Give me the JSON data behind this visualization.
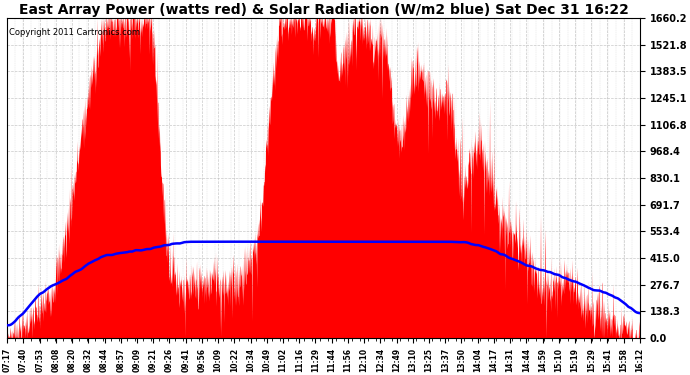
{
  "title": "East Array Power (watts red) & Solar Radiation (W/m2 blue) Sat Dec 31 16:22",
  "copyright_text": "Copyright 2011 Cartronics.com",
  "yticks": [
    0.0,
    138.3,
    276.7,
    415.0,
    553.4,
    691.7,
    830.1,
    968.4,
    1106.8,
    1245.1,
    1383.5,
    1521.8,
    1660.2
  ],
  "ymax": 1660.2,
  "ymin": 0.0,
  "background_color": "#ffffff",
  "plot_background": "#ffffff",
  "grid_color": "#bbbbbb",
  "red_color": "#ff0000",
  "blue_color": "#0000ff",
  "title_fontsize": 10,
  "x_labels": [
    "07:17",
    "07:40",
    "07:53",
    "08:08",
    "08:20",
    "08:32",
    "08:44",
    "08:57",
    "09:09",
    "09:21",
    "09:26",
    "09:41",
    "09:56",
    "10:09",
    "10:22",
    "10:34",
    "10:49",
    "11:02",
    "11:16",
    "11:29",
    "11:44",
    "11:56",
    "12:10",
    "12:34",
    "12:49",
    "13:10",
    "13:25",
    "13:37",
    "13:50",
    "14:04",
    "14:17",
    "14:31",
    "14:44",
    "14:59",
    "15:10",
    "15:19",
    "15:29",
    "15:41",
    "15:58",
    "16:12"
  ]
}
